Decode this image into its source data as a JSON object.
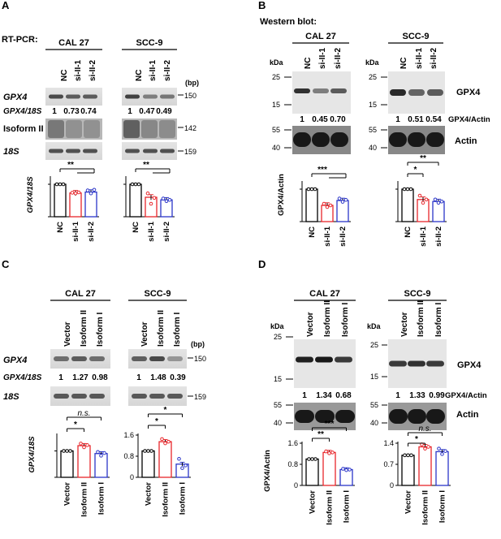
{
  "panels": {
    "A": {
      "letter": "A",
      "method": "RT-PCR:",
      "cell_lines": [
        "CAL 27",
        "SCC-9"
      ],
      "lanes": [
        "NC",
        "si-II-1",
        "si-II-2"
      ],
      "bp_unit": "(bp)",
      "rows": [
        "GPX4",
        "GPX4/18S",
        "Isoform II",
        "18S"
      ],
      "ratios": {
        "CAL 27": [
          "1",
          "0.73",
          "0.74"
        ],
        "SCC-9": [
          "1",
          "0.47",
          "0.49"
        ]
      },
      "markers": [
        "150",
        "142",
        "159"
      ],
      "ylabel": "GPX4/18S",
      "sig": {
        "CAL 27": "**",
        "SCC-9": "**"
      }
    },
    "B": {
      "letter": "B",
      "method": "Western blot:",
      "cell_lines": [
        "CAL 27",
        "SCC-9"
      ],
      "lanes": [
        "NC",
        "si-II-1",
        "si-II-2"
      ],
      "kda": "kDa",
      "ladder_top": [
        "25",
        "15"
      ],
      "ladder_bottom": [
        "55",
        "40"
      ],
      "protein": "GPX4",
      "ratio_label": "GPX4/Actin",
      "loading": "Actin",
      "ratios": {
        "CAL 27": [
          "1",
          "0.45",
          "0.70"
        ],
        "SCC-9": [
          "1",
          "0.51",
          "0.54"
        ]
      },
      "ylabel": "GPX4/Actin",
      "sig": {
        "CAL 27": "***",
        "SCC-9_1": "*",
        "SCC-9_2": "**"
      }
    },
    "C": {
      "letter": "C",
      "cell_lines": [
        "CAL 27",
        "SCC-9"
      ],
      "lanes": [
        "Vector",
        "Isoform II",
        "Isoform I"
      ],
      "bp_unit": "(bp)",
      "rows": [
        "GPX4",
        "GPX4/18S",
        "18S"
      ],
      "ratios": {
        "CAL 27": [
          "1",
          "1.27",
          "0.98"
        ],
        "SCC-9": [
          "1",
          "1.48",
          "0.39"
        ]
      },
      "markers": [
        "150",
        "159"
      ],
      "ylabel": "GPX4/18S",
      "yticks_right": [
        "1.6",
        "0.8",
        "0"
      ],
      "sig": {
        "CAL 27_1": "*",
        "CAL 27_2": "n.s.",
        "SCC-9_1": "*",
        "SCC-9_2": "*"
      }
    },
    "D": {
      "letter": "D",
      "cell_lines": [
        "CAL 27",
        "SCC-9"
      ],
      "lanes": [
        "Vector",
        "Isoform II",
        "Isoform I"
      ],
      "kda": "kDa",
      "ladder_top": [
        "25",
        "15"
      ],
      "ladder_bottom": [
        "55",
        "40"
      ],
      "protein": "GPX4",
      "ratio_label": "GPX4/Actin",
      "loading": "Actin",
      "ratios": {
        "CAL 27": [
          "1",
          "1.34",
          "0.68"
        ],
        "SCC-9": [
          "1",
          "1.33",
          "0.99"
        ]
      },
      "ylabel": "GPX4/Actin",
      "yticks_left": [
        "1.6",
        "0.8",
        "0"
      ],
      "yticks_right": [
        "1.4",
        "0.7",
        "0"
      ],
      "sig": {
        "CAL 27_1": "**",
        "CAL 27_2": "***",
        "SCC-9_1": "*",
        "SCC-9_2": "n.s."
      }
    }
  },
  "colors": {
    "nc": "#000000",
    "red": "#e8262b",
    "blue": "#2b35c8"
  },
  "chart_data": [
    {
      "type": "bar",
      "panel": "A",
      "cell_line": "CAL 27",
      "categories": [
        "NC",
        "si-II-1",
        "si-II-2"
      ],
      "values": [
        1.0,
        0.73,
        0.76
      ],
      "ylabel": "GPX4/18S",
      "ylim": [
        0,
        1.2
      ]
    },
    {
      "type": "bar",
      "panel": "A",
      "cell_line": "SCC-9",
      "categories": [
        "NC",
        "si-II-1",
        "si-II-2"
      ],
      "values": [
        1.0,
        0.6,
        0.52
      ],
      "ylabel": "GPX4/18S",
      "ylim": [
        0,
        1.2
      ]
    },
    {
      "type": "bar",
      "panel": "B",
      "cell_line": "CAL 27",
      "categories": [
        "NC",
        "si-II-1",
        "si-II-2"
      ],
      "values": [
        1.0,
        0.5,
        0.65
      ],
      "ylabel": "GPX4/Actin",
      "ylim": [
        0,
        1.2
      ]
    },
    {
      "type": "bar",
      "panel": "B",
      "cell_line": "SCC-9",
      "categories": [
        "NC",
        "si-II-1",
        "si-II-2"
      ],
      "values": [
        1.0,
        0.68,
        0.62
      ],
      "ylabel": "GPX4/Actin",
      "ylim": [
        0,
        1.2
      ]
    },
    {
      "type": "bar",
      "panel": "C",
      "cell_line": "CAL 27",
      "categories": [
        "Vector",
        "Isoform II",
        "Isoform I"
      ],
      "values": [
        1.0,
        1.2,
        0.9
      ],
      "ylabel": "GPX4/18S",
      "ylim": [
        0,
        1.6
      ]
    },
    {
      "type": "bar",
      "panel": "C",
      "cell_line": "SCC-9",
      "categories": [
        "Vector",
        "Isoform II",
        "Isoform I"
      ],
      "values": [
        1.0,
        1.35,
        0.5
      ],
      "ylabel": "GPX4/18S",
      "ylim": [
        0,
        1.6
      ]
    },
    {
      "type": "bar",
      "panel": "D",
      "cell_line": "CAL 27",
      "categories": [
        "Vector",
        "Isoform II",
        "Isoform I"
      ],
      "values": [
        1.0,
        1.25,
        0.6
      ],
      "ylabel": "GPX4/Actin",
      "ylim": [
        0,
        1.6
      ]
    },
    {
      "type": "bar",
      "panel": "D",
      "cell_line": "SCC-9",
      "categories": [
        "Vector",
        "Isoform II",
        "Isoform I"
      ],
      "values": [
        1.0,
        1.28,
        1.12
      ],
      "ylabel": "GPX4/Actin",
      "ylim": [
        0,
        1.4
      ]
    }
  ]
}
